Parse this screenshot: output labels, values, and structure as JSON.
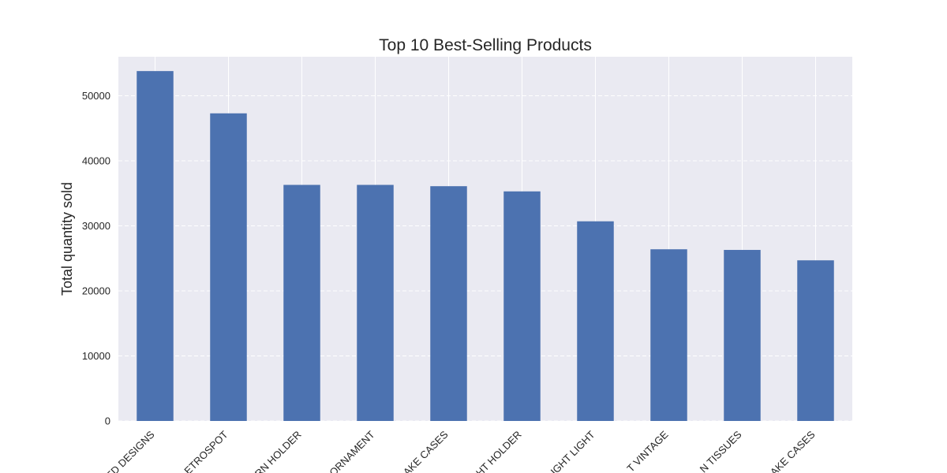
{
  "chart_data": {
    "type": "bar",
    "title": "Top 10 Best-Selling Products",
    "xlabel": "",
    "ylabel": "Total quantity sold",
    "categories": [
      "ED DESIGNS",
      "ETROSPOT",
      "RN HOLDER",
      "ORNAMENT",
      "AKE CASES",
      "HT HOLDER",
      "IGHT LIGHT",
      "T VINTAGE",
      "N TISSUES",
      "AKE CASES"
    ],
    "values": [
      53800,
      47300,
      36300,
      36300,
      36100,
      35300,
      30700,
      26400,
      26300,
      24700
    ],
    "ylim": [
      0,
      56000
    ],
    "yticks": [
      0,
      10000,
      20000,
      30000,
      40000,
      50000
    ],
    "grid": true,
    "legend": "none",
    "colors": {
      "bar": "#4c72b0",
      "plot_bg": "#eaeaf2",
      "grid": "#ffffff",
      "text": "#262626"
    }
  }
}
